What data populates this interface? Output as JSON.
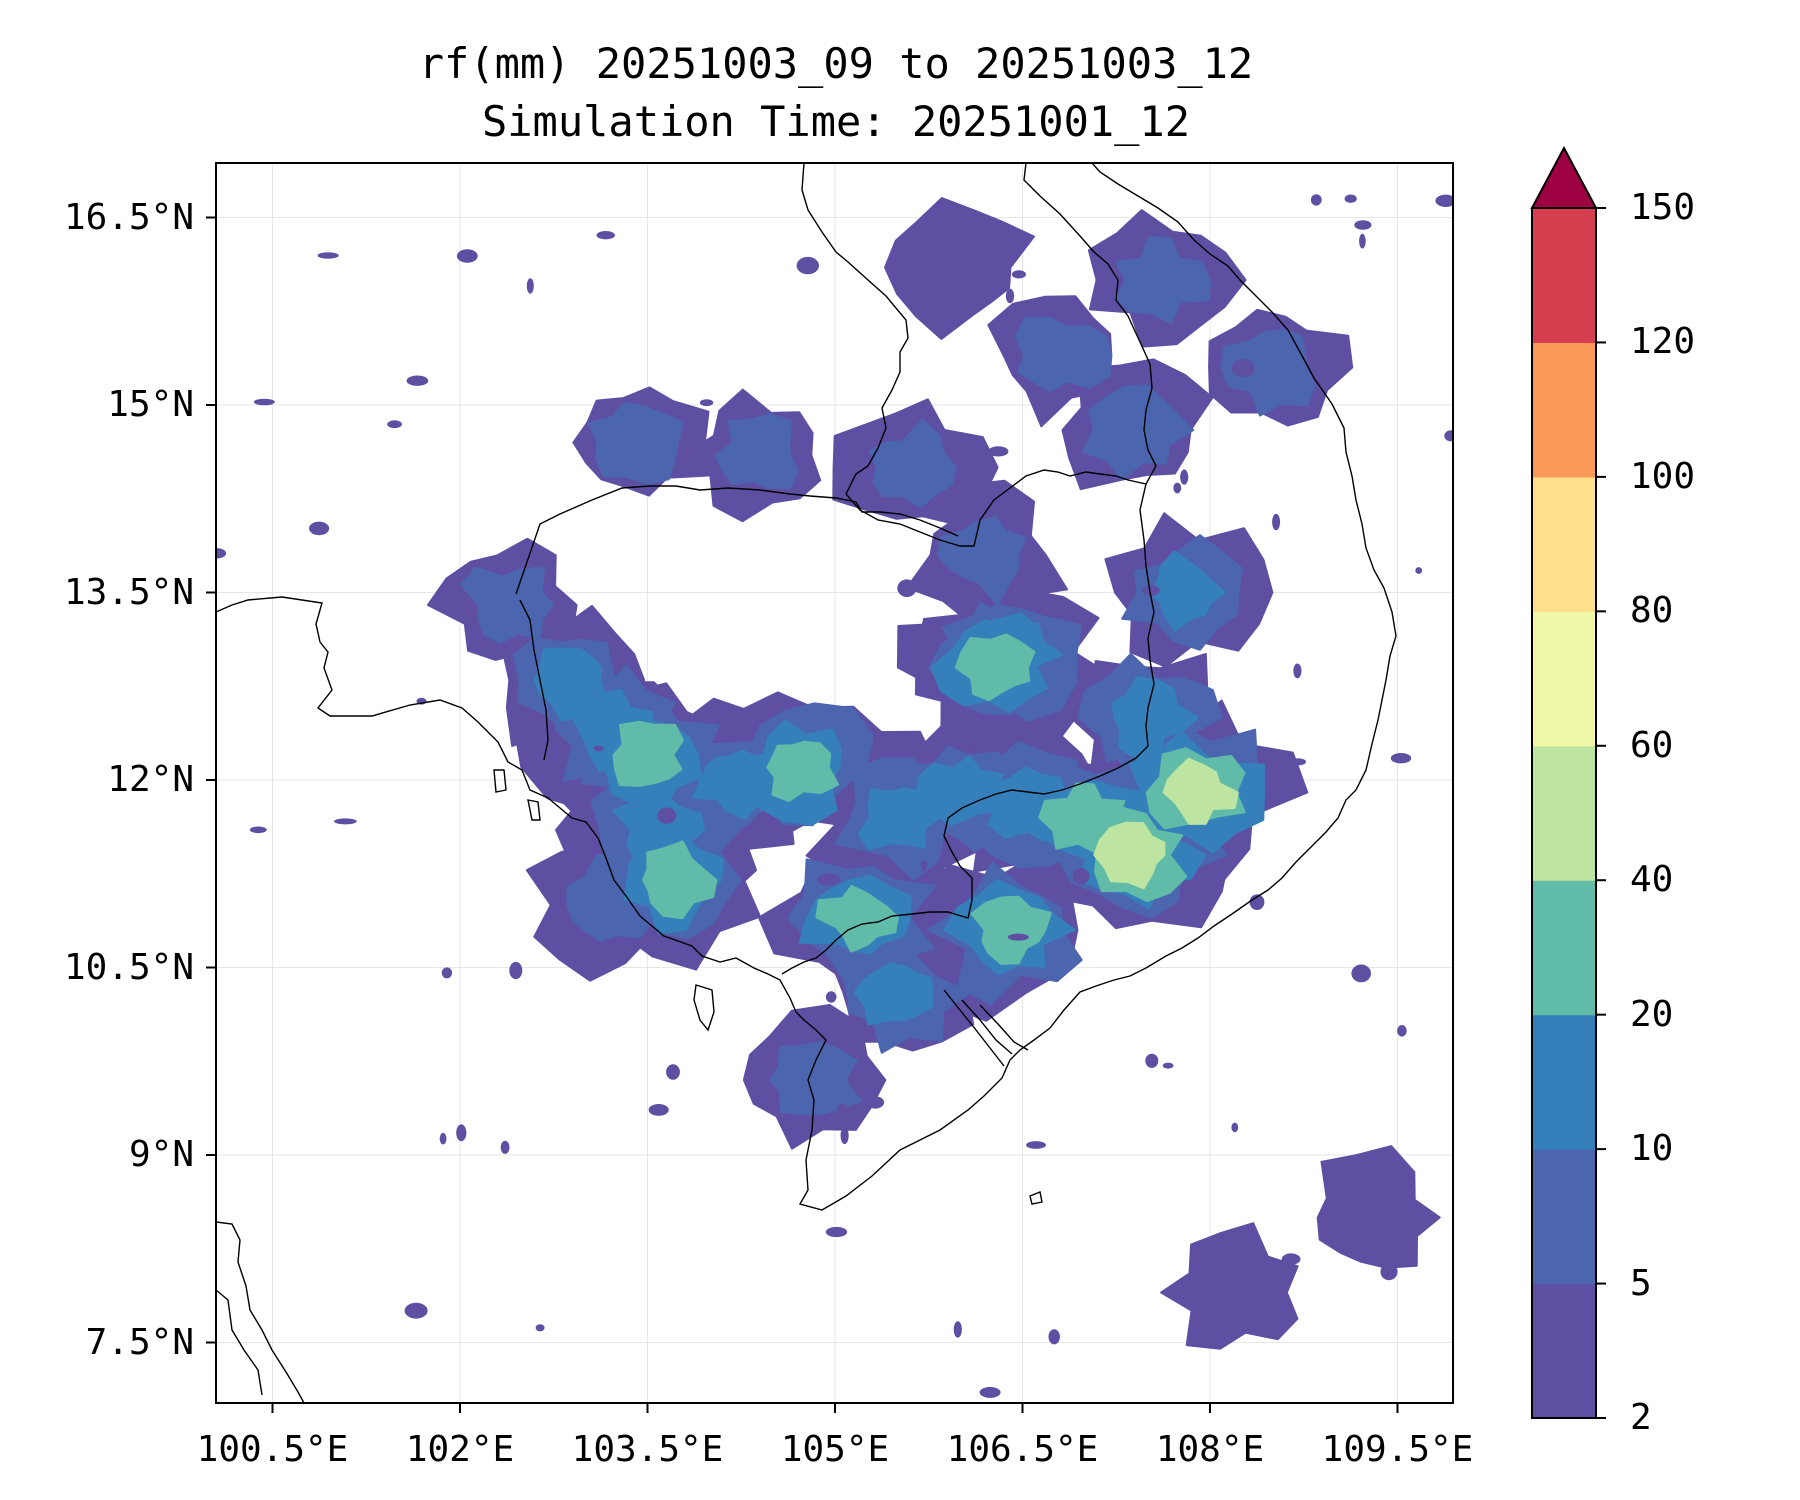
{
  "title_line1": "rf(mm) 20251003_09 to 20251003_12",
  "title_line2": "Simulation Time: 20251001_12",
  "map": {
    "lon_range": [
      100.5,
      109.5
    ],
    "lat_range": [
      7.5,
      16.5
    ],
    "lat_ticks": [
      "16.5°N",
      "15°N",
      "13.5°N",
      "12°N",
      "10.5°N",
      "9°N",
      "7.5°N"
    ],
    "lon_ticks": [
      "100.5°E",
      "102°E",
      "103.5°E",
      "105°E",
      "106.5°E",
      "108°E",
      "109.5°E"
    ],
    "gridlines": true
  },
  "colorbar": {
    "levels": [
      "2",
      "5",
      "10",
      "20",
      "40",
      "60",
      "80",
      "100",
      "120",
      "150"
    ],
    "colors": [
      "#5e4fa2",
      "#4b65ae",
      "#3580bb",
      "#60bba8",
      "#bde4a0",
      "#f1f8a9",
      "#fddf8c",
      "#fa9a59",
      "#d53e4f",
      "#9e0142"
    ],
    "extend": "max"
  },
  "rain_cells": [
    {
      "lon": 102.4,
      "lat": 13.4,
      "mm": 5
    },
    {
      "lon": 102.9,
      "lat": 12.8,
      "mm": 10
    },
    {
      "lon": 103.2,
      "lat": 12.4,
      "mm": 12
    },
    {
      "lon": 103.5,
      "lat": 12.2,
      "mm": 25
    },
    {
      "lon": 103.6,
      "lat": 11.6,
      "mm": 15
    },
    {
      "lon": 103.7,
      "lat": 11.2,
      "mm": 22
    },
    {
      "lon": 104.2,
      "lat": 12.0,
      "mm": 10
    },
    {
      "lon": 104.7,
      "lat": 12.1,
      "mm": 22
    },
    {
      "lon": 103.4,
      "lat": 14.7,
      "mm": 6
    },
    {
      "lon": 104.4,
      "lat": 14.6,
      "mm": 5
    },
    {
      "lon": 105.6,
      "lat": 14.5,
      "mm": 6
    },
    {
      "lon": 106.2,
      "lat": 13.8,
      "mm": 8
    },
    {
      "lon": 106.4,
      "lat": 13.0,
      "mm": 18
    },
    {
      "lon": 106.3,
      "lat": 12.9,
      "mm": 22
    },
    {
      "lon": 105.5,
      "lat": 11.7,
      "mm": 12
    },
    {
      "lon": 106.0,
      "lat": 11.9,
      "mm": 10
    },
    {
      "lon": 106.6,
      "lat": 11.8,
      "mm": 18
    },
    {
      "lon": 107.0,
      "lat": 11.7,
      "mm": 25
    },
    {
      "lon": 107.4,
      "lat": 11.4,
      "mm": 55
    },
    {
      "lon": 107.9,
      "lat": 11.9,
      "mm": 42
    },
    {
      "lon": 107.5,
      "lat": 12.5,
      "mm": 12
    },
    {
      "lon": 107.8,
      "lat": 13.5,
      "mm": 10
    },
    {
      "lon": 107.4,
      "lat": 14.8,
      "mm": 8
    },
    {
      "lon": 106.8,
      "lat": 15.4,
      "mm": 6
    },
    {
      "lon": 107.6,
      "lat": 16.0,
      "mm": 5
    },
    {
      "lon": 106.0,
      "lat": 16.1,
      "mm": 4
    },
    {
      "lon": 105.2,
      "lat": 10.9,
      "mm": 22
    },
    {
      "lon": 106.4,
      "lat": 10.8,
      "mm": 28
    },
    {
      "lon": 105.5,
      "lat": 10.3,
      "mm": 10
    },
    {
      "lon": 104.8,
      "lat": 9.6,
      "mm": 6
    },
    {
      "lon": 103.2,
      "lat": 11.0,
      "mm": 8
    },
    {
      "lon": 108.5,
      "lat": 15.3,
      "mm": 6
    },
    {
      "lon": 109.3,
      "lat": 8.5,
      "mm": 4
    },
    {
      "lon": 108.2,
      "lat": 7.9,
      "mm": 4
    }
  ]
}
